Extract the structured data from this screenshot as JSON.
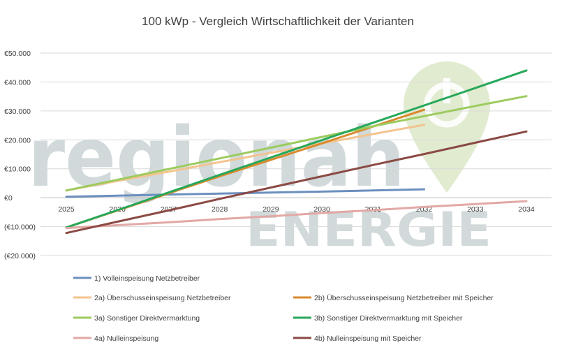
{
  "chart_data": {
    "type": "line",
    "title": "100 kWp - Vergleich Wirtschaftlichkeit der Varianten",
    "xlabel": "",
    "ylabel": "",
    "x": [
      "2025",
      "2026",
      "2027",
      "2028",
      "2029",
      "2030",
      "2031",
      "2032",
      "2033",
      "2034"
    ],
    "ylim": [
      -20000,
      50000
    ],
    "yticks": [
      50000,
      40000,
      30000,
      20000,
      10000,
      0,
      -10000,
      -20000
    ],
    "ytick_labels": [
      "€50.000",
      "€40.000",
      "€30.000",
      "€20.000",
      "€10.000",
      "€0",
      "(€10.000)",
      "(€20.000)"
    ],
    "grid": "horizontal",
    "legend_placement": "bottom",
    "series": [
      {
        "name": "1) Volleinspeisung Netzbetreiber",
        "color": "#6B8FBF",
        "values": [
          300,
          700,
          1100,
          1400,
          1800,
          2100,
          2500,
          2900,
          null,
          null
        ]
      },
      {
        "name": "2a) Überschusseinspeisung Netzbetreiber",
        "color": "#F3C48F",
        "values": [
          2500,
          5800,
          9000,
          12300,
          15500,
          18800,
          22000,
          25200,
          null,
          null
        ]
      },
      {
        "name": "2b) Überschusseinspeisung Netzbetreiber mit Speicher",
        "color": "#D98A2E",
        "values": [
          -10300,
          -4400,
          1500,
          7400,
          13100,
          18800,
          24600,
          30400,
          null,
          null
        ]
      },
      {
        "name": "3a) Sonstiger Direktvermarktung",
        "color": "#9CCB5E",
        "values": [
          2500,
          6200,
          9900,
          13600,
          17300,
          21000,
          24700,
          28200,
          31700,
          35100
        ]
      },
      {
        "name": "3b) Sonstiger Direktvermarktung mit Speicher",
        "color": "#27A85A",
        "values": [
          -10300,
          -4300,
          1800,
          7900,
          13900,
          19900,
          25900,
          31900,
          37900,
          44000
        ]
      },
      {
        "name": "4a) Nulleinspeisung",
        "color": "#E2A8A5",
        "values": [
          -10500,
          -9500,
          -8500,
          -7400,
          -6400,
          -5300,
          -4300,
          -3200,
          -2200,
          -1200
        ]
      },
      {
        "name": "4b) Nulleinspeisung mit Speicher",
        "color": "#8B4A44",
        "values": [
          -12200,
          -8300,
          -4400,
          -400,
          3500,
          7400,
          11300,
          15100,
          19000,
          22900
        ]
      }
    ]
  },
  "watermark": {
    "line1": "regionah",
    "line2": "ENERGIE",
    "colors": {
      "grey": "#C9D3D4",
      "green": "#DCE8C8"
    }
  }
}
